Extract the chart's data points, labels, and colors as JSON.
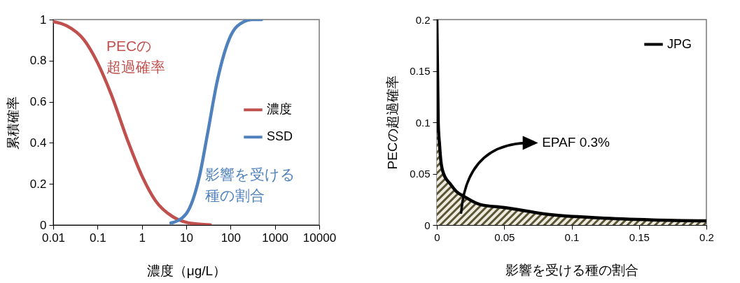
{
  "chart_data": [
    {
      "type": "line",
      "xlabel": "濃度（μg/L）",
      "ylabel": "累積確率",
      "log": "x",
      "xlim": [
        0.01,
        10000
      ],
      "xticks": [
        0.01,
        0.1,
        1,
        10,
        100,
        1000,
        10000
      ],
      "ylim": [
        0,
        1
      ],
      "yticks": [
        0,
        0.2,
        0.4,
        0.6,
        0.8,
        1
      ],
      "legend": "right",
      "series": [
        {
          "name": "濃度",
          "color": "#c0504d",
          "x": [
            0.01,
            0.02,
            0.05,
            0.1,
            0.2,
            0.5,
            1,
            2,
            5,
            10,
            20,
            35
          ],
          "values": [
            0.99,
            0.97,
            0.9,
            0.79,
            0.64,
            0.4,
            0.24,
            0.12,
            0.04,
            0.013,
            0.004,
            0.001
          ]
        },
        {
          "name": "SSD",
          "color": "#4f81bd",
          "x": [
            4.5,
            5,
            10,
            20,
            30,
            50,
            100,
            200,
            300,
            500
          ],
          "values": [
            0.01,
            0.012,
            0.055,
            0.24,
            0.44,
            0.7,
            0.92,
            0.99,
            1,
            1
          ]
        }
      ],
      "annotations": [
        "PECの超過確率",
        "影響を受ける種の割合"
      ]
    },
    {
      "type": "area",
      "xlabel": "影響を受ける種の割合",
      "ylabel": "PECの超過確率",
      "xlim": [
        0,
        0.2
      ],
      "xticks": [
        0,
        0.05,
        0.1,
        0.15,
        0.2
      ],
      "ylim": [
        0,
        0.2
      ],
      "yticks": [
        0,
        0.05,
        0.1,
        0.15,
        0.2
      ],
      "legend": "top right",
      "series": [
        {
          "name": "JPG",
          "color": "#000000",
          "x": [
            0,
            0.001,
            0.002,
            0.003,
            0.005,
            0.01,
            0.015,
            0.02,
            0.032,
            0.05,
            0.085,
            0.12,
            0.16,
            0.2
          ],
          "values": [
            0.2,
            0.1,
            0.078,
            0.062,
            0.05,
            0.04,
            0.032,
            0.028,
            0.02,
            0.017,
            0.01,
            0.007,
            0.005,
            0.004
          ]
        }
      ],
      "annotations": [
        "EPAF 0.3%"
      ]
    }
  ]
}
